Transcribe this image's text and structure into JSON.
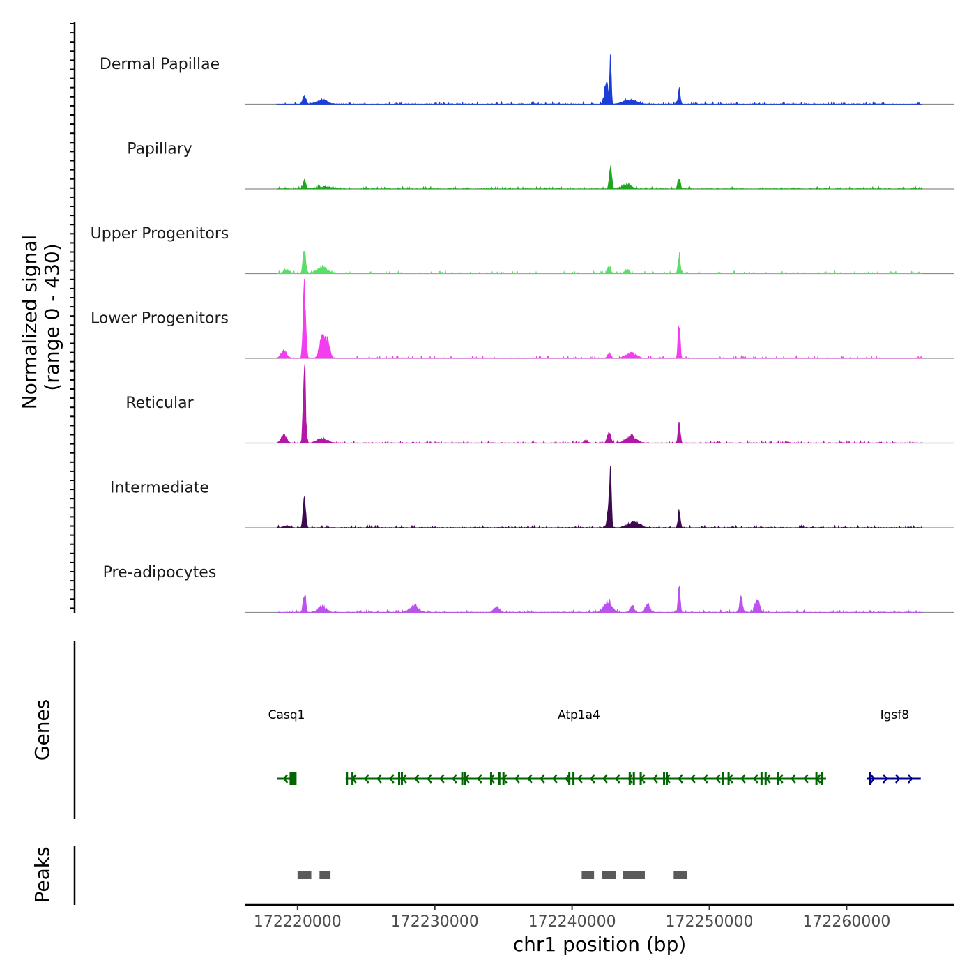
{
  "chart_data": {
    "type": "area",
    "title": "",
    "ylabel": "Normalized signal",
    "ylabel_range": "(range 0 - 430)",
    "ylim": [
      0,
      430
    ],
    "xlabel": "chr1 position (bp)",
    "xlim": [
      172216200,
      172267800
    ],
    "x_ticks": [
      172220000,
      172230000,
      172240000,
      172250000,
      172260000
    ],
    "x_tick_labels": [
      "172220000",
      "172230000",
      "172240000",
      "172250000",
      "172260000"
    ],
    "tracks": [
      {
        "name": "Dermal Papillae",
        "color": "#1a3ed6",
        "peaks": [
          {
            "pos": 172220500,
            "value": 40,
            "width": 300
          },
          {
            "pos": 172221800,
            "value": 22,
            "width": 900
          },
          {
            "pos": 172242500,
            "value": 110,
            "width": 350
          },
          {
            "pos": 172242800,
            "value": 220,
            "width": 150
          },
          {
            "pos": 172244200,
            "value": 22,
            "width": 1200
          },
          {
            "pos": 172247800,
            "value": 80,
            "width": 200
          }
        ]
      },
      {
        "name": "Papillary",
        "color": "#1ea61e",
        "peaks": [
          {
            "pos": 172220500,
            "value": 45,
            "width": 250
          },
          {
            "pos": 172222000,
            "value": 12,
            "width": 1200
          },
          {
            "pos": 172242800,
            "value": 130,
            "width": 220
          },
          {
            "pos": 172244000,
            "value": 22,
            "width": 800
          },
          {
            "pos": 172247800,
            "value": 70,
            "width": 220
          }
        ]
      },
      {
        "name": "Upper Progenitors",
        "color": "#5ddc6a",
        "peaks": [
          {
            "pos": 172219200,
            "value": 20,
            "width": 600
          },
          {
            "pos": 172220500,
            "value": 145,
            "width": 250
          },
          {
            "pos": 172221800,
            "value": 35,
            "width": 900
          },
          {
            "pos": 172242700,
            "value": 45,
            "width": 250
          },
          {
            "pos": 172244000,
            "value": 22,
            "width": 400
          },
          {
            "pos": 172247800,
            "value": 110,
            "width": 200
          }
        ]
      },
      {
        "name": "Lower Progenitors",
        "color": "#f53df0",
        "peaks": [
          {
            "pos": 172219000,
            "value": 40,
            "width": 500
          },
          {
            "pos": 172220500,
            "value": 420,
            "width": 230
          },
          {
            "pos": 172221800,
            "value": 110,
            "width": 500
          },
          {
            "pos": 172222200,
            "value": 80,
            "width": 400
          },
          {
            "pos": 172242700,
            "value": 25,
            "width": 300
          },
          {
            "pos": 172244300,
            "value": 30,
            "width": 900
          },
          {
            "pos": 172247800,
            "value": 210,
            "width": 180
          }
        ]
      },
      {
        "name": "Reticular",
        "color": "#b317a6",
        "peaks": [
          {
            "pos": 172219000,
            "value": 40,
            "width": 500
          },
          {
            "pos": 172220500,
            "value": 400,
            "width": 220
          },
          {
            "pos": 172221800,
            "value": 25,
            "width": 900
          },
          {
            "pos": 172241000,
            "value": 15,
            "width": 300
          },
          {
            "pos": 172242700,
            "value": 60,
            "width": 300
          },
          {
            "pos": 172244300,
            "value": 40,
            "width": 900
          },
          {
            "pos": 172247800,
            "value": 95,
            "width": 200
          }
        ]
      },
      {
        "name": "Intermediate",
        "color": "#3d0a4f",
        "peaks": [
          {
            "pos": 172219200,
            "value": 12,
            "width": 500
          },
          {
            "pos": 172220500,
            "value": 170,
            "width": 220
          },
          {
            "pos": 172242700,
            "value": 120,
            "width": 300
          },
          {
            "pos": 172242800,
            "value": 220,
            "width": 150
          },
          {
            "pos": 172244500,
            "value": 30,
            "width": 1000
          },
          {
            "pos": 172247800,
            "value": 95,
            "width": 200
          }
        ]
      },
      {
        "name": "Pre-adipocytes",
        "color": "#bd51f0",
        "peaks": [
          {
            "pos": 172220500,
            "value": 120,
            "width": 220
          },
          {
            "pos": 172221800,
            "value": 35,
            "width": 700
          },
          {
            "pos": 172228500,
            "value": 35,
            "width": 800
          },
          {
            "pos": 172234500,
            "value": 28,
            "width": 500
          },
          {
            "pos": 172242600,
            "value": 60,
            "width": 700
          },
          {
            "pos": 172244400,
            "value": 40,
            "width": 300
          },
          {
            "pos": 172245500,
            "value": 45,
            "width": 400
          },
          {
            "pos": 172247800,
            "value": 150,
            "width": 180
          },
          {
            "pos": 172252300,
            "value": 95,
            "width": 250
          },
          {
            "pos": 172253500,
            "value": 70,
            "width": 400
          }
        ]
      }
    ],
    "genes_label": "Genes",
    "genes": [
      {
        "name": "Casq1",
        "start": 172218500,
        "end": 172219900,
        "strand": "-",
        "color": "#006400",
        "label_pos": 172219200,
        "exons": [
          172219600,
          172219750
        ]
      },
      {
        "name": "Atp1a4",
        "start": 172223500,
        "end": 172258500,
        "strand": "-",
        "color": "#006400",
        "label_pos": 172240500,
        "exons": [
          172223600,
          172224000,
          172227400,
          172227600,
          172232000,
          172232200,
          172234100,
          172234700,
          172235000,
          172239800,
          172240100,
          172244200,
          172244500,
          172245000,
          172246700,
          172246900,
          172251000,
          172251400,
          172253800,
          172254100,
          172255000,
          172257800,
          172258200
        ]
      },
      {
        "name": "Igsf8",
        "start": 172261500,
        "end": 172265400,
        "strand": "+",
        "color": "#00008b",
        "label_pos": 172263500,
        "exons": [
          172261700
        ]
      }
    ],
    "peaks_label": "Peaks",
    "peak_regions": [
      {
        "start": 172220000,
        "end": 172221000
      },
      {
        "start": 172221600,
        "end": 172222400
      },
      {
        "start": 172240700,
        "end": 172241600
      },
      {
        "start": 172242200,
        "end": 172243200
      },
      {
        "start": 172243700,
        "end": 172244500
      },
      {
        "start": 172244500,
        "end": 172245300
      },
      {
        "start": 172247400,
        "end": 172248400
      }
    ]
  }
}
